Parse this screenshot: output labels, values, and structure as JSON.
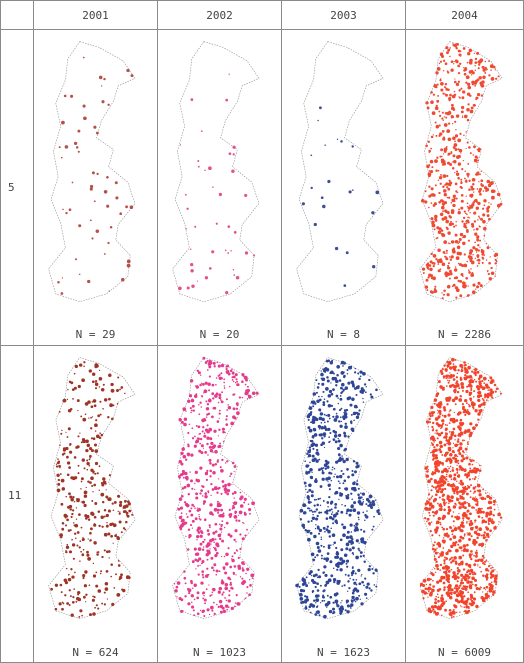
{
  "columns": [
    "2001",
    "2002",
    "2003",
    "2004"
  ],
  "rows": [
    {
      "label": "5",
      "cells": [
        {
          "n": "N = 29",
          "color": "#b4524a",
          "density": 0.04
        },
        {
          "n": "N = 20",
          "color": "#e4508e",
          "density": 0.03
        },
        {
          "n": "N = 8",
          "color": "#3b4f97",
          "density": 0.015
        },
        {
          "n": "N = 2286",
          "color": "#ef4a34",
          "density": 0.5
        }
      ]
    },
    {
      "label": "11",
      "cells": [
        {
          "n": "N = 624",
          "color": "#9e3426",
          "density": 0.28
        },
        {
          "n": "N = 1023",
          "color": "#e53b8c",
          "density": 0.45
        },
        {
          "n": "N = 1623",
          "color": "#2f4596",
          "density": 0.55
        },
        {
          "n": "N = 6009",
          "color": "#f2442c",
          "density": 0.9
        }
      ]
    }
  ],
  "outline_color": "#8d8d8d"
}
